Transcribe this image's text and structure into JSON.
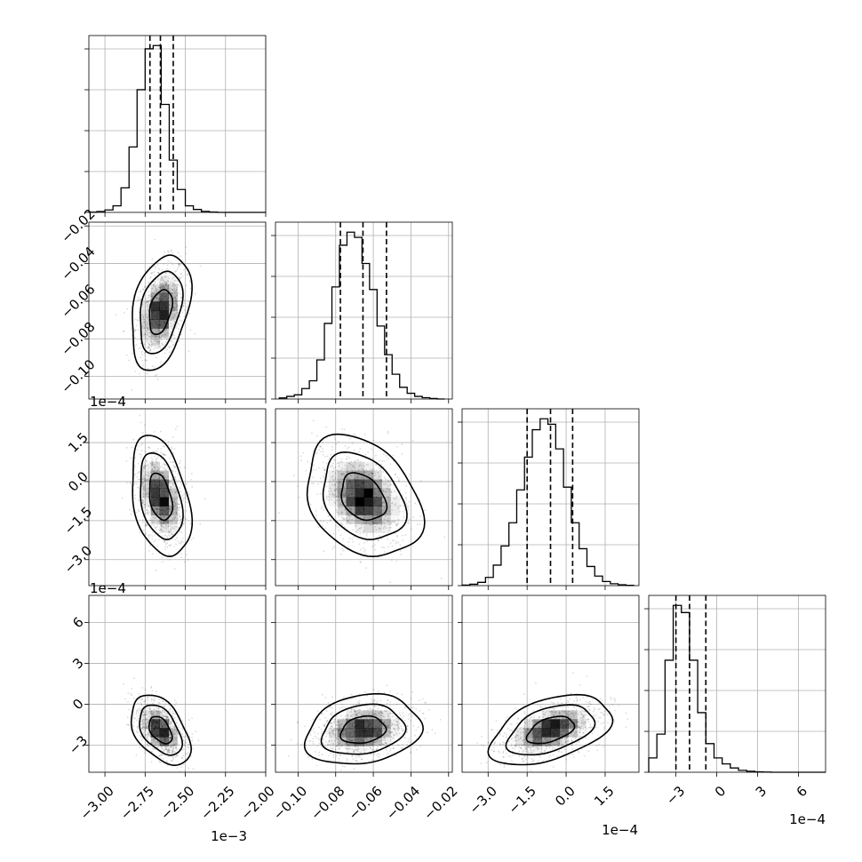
{
  "chart_data": {
    "type": "corner",
    "colors": {
      "line": "#000000",
      "grid": "#b0b0b0",
      "background": "#ffffff"
    },
    "grid": true,
    "params": [
      {
        "id": "p0",
        "range": [
          -3.1,
          -2.0
        ],
        "ticks": [
          -3.0,
          -2.75,
          -2.5,
          -2.25,
          -2.0
        ],
        "tick_labels": [
          "−3.00",
          "−2.75",
          "−2.50",
          "−2.25",
          "−2.00"
        ],
        "offset_label": "1e−3"
      },
      {
        "id": "p1",
        "range": [
          -0.112,
          -0.018
        ],
        "ticks": [
          -0.1,
          -0.08,
          -0.06,
          -0.04,
          -0.02
        ],
        "tick_labels": [
          "−0.10",
          "−0.08",
          "−0.06",
          "−0.04",
          "−0.02"
        ],
        "offset_label": ""
      },
      {
        "id": "p2",
        "range": [
          -4.0,
          2.8
        ],
        "ticks": [
          -3.0,
          -1.5,
          0.0,
          1.5
        ],
        "tick_labels": [
          "−3.0",
          "−1.5",
          "0.0",
          "1.5"
        ],
        "offset_label": "1e−4"
      },
      {
        "id": "p3",
        "range": [
          -5.0,
          8.0
        ],
        "ticks": [
          -3,
          0,
          3,
          6
        ],
        "tick_labels": [
          "−3",
          "0",
          "3",
          "6"
        ],
        "offset_label": "1e−4"
      }
    ],
    "marginals": [
      {
        "param": "p0",
        "quantiles": [
          -2.72,
          -2.655,
          -2.575
        ],
        "bin_edges": [
          -3.1,
          -3.05,
          -3.0,
          -2.95,
          -2.9,
          -2.85,
          -2.8,
          -2.75,
          -2.7,
          -2.65,
          -2.6,
          -2.55,
          -2.5,
          -2.45,
          -2.4,
          -2.35,
          -2.3,
          -2.25,
          -2.2,
          -2.15,
          -2.1,
          -2.05,
          -2.0
        ],
        "counts": [
          1,
          5,
          15,
          40,
          150,
          400,
          750,
          1000,
          1020,
          660,
          320,
          140,
          40,
          18,
          6,
          2,
          0,
          0,
          0,
          0,
          0,
          0
        ]
      },
      {
        "param": "p1",
        "quantiles": [
          -0.0775,
          -0.0655,
          -0.053
        ],
        "bin_edges": [
          -0.11,
          -0.106,
          -0.102,
          -0.098,
          -0.094,
          -0.09,
          -0.086,
          -0.082,
          -0.078,
          -0.074,
          -0.07,
          -0.066,
          -0.062,
          -0.058,
          -0.054,
          -0.05,
          -0.046,
          -0.042,
          -0.038,
          -0.034,
          -0.03,
          -0.026,
          -0.022
        ],
        "counts": [
          4,
          10,
          16,
          40,
          70,
          150,
          290,
          430,
          590,
          640,
          620,
          520,
          420,
          280,
          170,
          95,
          45,
          22,
          10,
          5,
          2,
          0
        ]
      },
      {
        "param": "p2",
        "quantiles": [
          -1.5,
          -0.6,
          0.25
        ],
        "bin_edges": [
          -4.0,
          -3.7,
          -3.4,
          -3.1,
          -2.8,
          -2.5,
          -2.2,
          -1.9,
          -1.6,
          -1.3,
          -1.0,
          -0.7,
          -0.4,
          -0.1,
          0.2,
          0.5,
          0.8,
          1.1,
          1.4,
          1.7,
          2.0,
          2.3,
          2.6
        ],
        "counts": [
          2,
          5,
          12,
          30,
          75,
          145,
          230,
          350,
          470,
          570,
          610,
          590,
          500,
          360,
          230,
          135,
          70,
          35,
          15,
          7,
          3,
          1
        ]
      },
      {
        "param": "p3",
        "quantiles": [
          -3.0,
          -2.0,
          -0.8
        ],
        "bin_edges": [
          -5.0,
          -4.4,
          -3.8,
          -3.2,
          -2.6,
          -2.0,
          -1.4,
          -0.8,
          -0.2,
          0.4,
          1.0,
          1.6,
          2.2,
          2.8,
          3.4,
          4.0,
          4.6,
          5.2,
          5.8,
          6.4,
          7.0,
          7.6,
          8.0
        ],
        "counts": [
          60,
          160,
          470,
          700,
          670,
          470,
          250,
          120,
          60,
          35,
          18,
          8,
          4,
          2,
          1,
          0,
          0,
          0,
          0,
          0,
          0,
          0
        ]
      }
    ],
    "pairs": [
      {
        "x": "p0",
        "y": "p1",
        "mean": [
          -2.655,
          -0.0655
        ],
        "sd": [
          0.075,
          0.0125
        ],
        "rho": 0.35
      },
      {
        "x": "p0",
        "y": "p2",
        "mean": [
          -2.655,
          -0.6
        ],
        "sd": [
          0.075,
          0.95
        ],
        "rho": -0.35
      },
      {
        "x": "p1",
        "y": "p2",
        "mean": [
          -0.0655,
          -0.6
        ],
        "sd": [
          0.0125,
          0.95
        ],
        "rho": -0.3
      },
      {
        "x": "p0",
        "y": "p3",
        "mean": [
          -2.655,
          -1.9
        ],
        "sd": [
          0.075,
          1.05
        ],
        "rho": -0.45
      },
      {
        "x": "p1",
        "y": "p3",
        "mean": [
          -0.0655,
          -1.9
        ],
        "sd": [
          0.0125,
          1.05
        ],
        "rho": 0.2
      },
      {
        "x": "p2",
        "y": "p3",
        "mean": [
          -0.6,
          -1.9
        ],
        "sd": [
          0.95,
          1.05
        ],
        "rho": 0.45
      }
    ]
  }
}
